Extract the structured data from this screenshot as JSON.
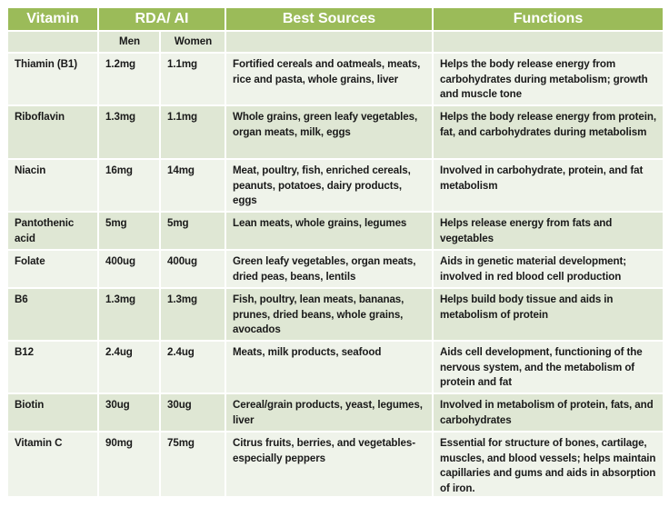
{
  "header": {
    "vitamin": "Vitamin",
    "rda": "RDA/ AI",
    "sources": "Best Sources",
    "functions": "Functions"
  },
  "subheader": {
    "men": "Men",
    "women": "Women"
  },
  "colors": {
    "header": "#9bbb59",
    "row_dark": "#dfe7d4",
    "row_light": "#eff3ea"
  },
  "rows": [
    {
      "vitamin": "Thiamin (B1)",
      "men": "1.2mg",
      "women": "1.1mg",
      "sources": "Fortified cereals and oatmeals, meats, rice and pasta, whole grains, liver",
      "functions": "Helps the body release energy from carbohydrates during metabolism; growth and muscle tone"
    },
    {
      "vitamin": "Riboflavin",
      "men": "1.3mg",
      "women": "1.1mg",
      "sources": "Whole grains, green leafy vegetables, organ meats, milk, eggs",
      "functions": "Helps the body release energy from protein, fat, and carbohydrates during metabolism"
    },
    {
      "vitamin": "Niacin",
      "men": "16mg",
      "women": "14mg",
      "sources": "Meat, poultry, fish, enriched cereals, peanuts, potatoes, dairy products, eggs",
      "functions": "Involved in carbohydrate, protein, and fat metabolism"
    },
    {
      "vitamin": "Pantothenic acid",
      "men": "5mg",
      "women": "5mg",
      "sources": "Lean meats, whole grains, legumes",
      "functions": "Helps release energy from fats and vegetables"
    },
    {
      "vitamin": "Folate",
      "men": "400ug",
      "women": "400ug",
      "sources": "Green leafy vegetables, organ meats, dried peas, beans, lentils",
      "functions": "Aids in genetic material development; involved in red blood cell production"
    },
    {
      "vitamin": "B6",
      "men": "1.3mg",
      "women": "1.3mg",
      "sources": "Fish, poultry, lean meats, bananas, prunes, dried beans, whole grains, avocados",
      "functions": "Helps build body tissue and aids in metabolism of protein"
    },
    {
      "vitamin": "B12",
      "men": "2.4ug",
      "women": "2.4ug",
      "sources": "Meats, milk products, seafood",
      "functions": "Aids cell development, functioning of the nervous system, and the metabolism of protein and fat"
    },
    {
      "vitamin": "Biotin",
      "men": "30ug",
      "women": "30ug",
      "sources": "Cereal/grain products, yeast, legumes, liver",
      "functions": "Involved in metabolism of protein, fats, and carbohydrates"
    },
    {
      "vitamin": "Vitamin C",
      "men": "90mg",
      "women": "75mg",
      "sources": "Citrus fruits, berries, and vegetables-especially peppers",
      "functions": "Essential for structure of bones, cartilage, muscles, and blood vessels; helps maintain capillaries and gums and aids in absorption of iron."
    }
  ]
}
